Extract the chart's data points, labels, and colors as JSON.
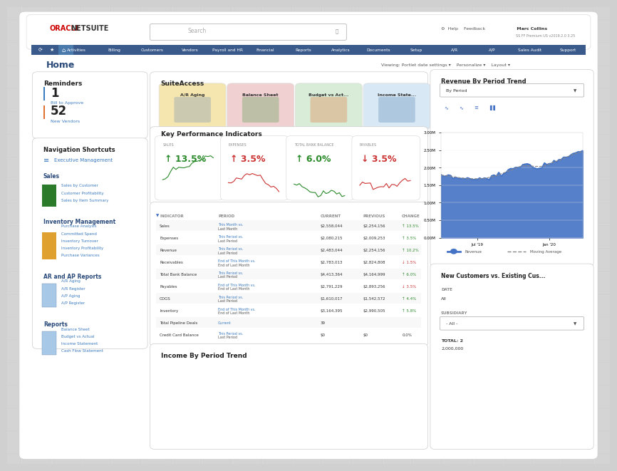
{
  "bg_outer": "#d0d0d0",
  "bg_tile": "#e8e8e8",
  "bg_main": "#f0f0f0",
  "panel_bg": "#ffffff",
  "nav_bar_color": "#3a5a8c",
  "nav_bar_text": "#ffffff",
  "home_title_color": "#2a4a7a",
  "section_title_color": "#2a4a7a",
  "link_color": "#3a7abf",
  "title": "Home",
  "nav_items": [
    "Activities",
    "Billing",
    "Customers",
    "Vendors",
    "Payroll and HR",
    "Financial",
    "Reports",
    "Analytics",
    "Documents",
    "Setup",
    "A/R",
    "A/P",
    "Sales Audit",
    "Support"
  ],
  "reminders": {
    "title": "Reminders",
    "items": [
      {
        "num": "1",
        "desc": "Bill to Approve",
        "color": "#3a7abf"
      },
      {
        "num": "52",
        "desc": "New Vendors",
        "color": "#e07030"
      }
    ]
  },
  "suite_access": {
    "title": "SuiteAccess",
    "items": [
      {
        "label": "A/R Aging",
        "bg": "#f5e6b0"
      },
      {
        "label": "Balance Sheet",
        "bg": "#f0d0d0"
      },
      {
        "label": "Budget vs Act...",
        "bg": "#d8ecd8"
      },
      {
        "label": "Income State...",
        "bg": "#d8e8f5"
      }
    ]
  },
  "kpi": {
    "title": "Key Performance Indicators",
    "cards": [
      {
        "label": "SALES",
        "value": "13.5%",
        "direction": "up",
        "color": "#2a8a2a"
      },
      {
        "label": "EXPENSES",
        "value": "3.5%",
        "direction": "up",
        "color": "#cc3333"
      },
      {
        "label": "TOTAL BANK BALANCE",
        "value": "6.0%",
        "direction": "up",
        "color": "#2a8a2a"
      },
      {
        "label": "PAYABLES",
        "value": "3.5%",
        "direction": "down",
        "color": "#cc3333"
      }
    ]
  },
  "kpi_table": {
    "headers": [
      "INDICATOR",
      "PERIOD",
      "CURRENT",
      "PREVIOUS",
      "CHANGE"
    ],
    "rows": [
      [
        "Sales",
        "This Month vs. Last Month",
        "$2,558,044",
        "$2,254,156",
        "up",
        "13.5%"
      ],
      [
        "Expenses",
        "This Period vs. Last Period",
        "$2,080,215",
        "$2,009,253",
        "up",
        "3.5%"
      ],
      [
        "Revenue",
        "This Period vs. Last Period",
        "$2,483,044",
        "$2,254,156",
        "up",
        "10.2%"
      ],
      [
        "Receivables",
        "End of This Month vs. End of Last Month",
        "$2,783,013",
        "$2,824,808",
        "down",
        "1.5%"
      ],
      [
        "Total Bank Balance",
        "This Period vs. Last Period",
        "$4,413,364",
        "$4,164,999",
        "up",
        "6.0%"
      ],
      [
        "Payables",
        "End of This Month vs. End of Last Month",
        "$2,791,229",
        "$2,893,256",
        "down",
        "3.5%"
      ],
      [
        "COGS",
        "This Period vs. Last Period",
        "$1,610,017",
        "$1,542,572",
        "up",
        "4.4%"
      ],
      [
        "Inventory",
        "End of This Month vs. End of Last Month",
        "$3,164,395",
        "$2,990,505",
        "up",
        "5.8%"
      ],
      [
        "Total Pipeline Deals",
        "Current",
        "39",
        "",
        "",
        ""
      ],
      [
        "Credit Card Balance",
        "This Period vs. Last Period",
        "$0",
        "$0",
        "",
        "0.0%"
      ]
    ]
  },
  "revenue_chart": {
    "title": "Revenue By Period Trend",
    "subtitle": "By Period",
    "ylabel_ticks": [
      "0.00M",
      "0.50M",
      "1.00M",
      "1.50M",
      "2.00M",
      "2.50M",
      "3.00M"
    ],
    "xticks": [
      "Jul '19",
      "Jan '20"
    ],
    "area_color": "#4472c4",
    "line_color": "#4472c4",
    "moving_avg_color": "#888888",
    "legend": [
      "Revenue",
      "Moving Average"
    ]
  },
  "nav_shortcuts": {
    "title": "Navigation Shortcuts",
    "sections": [
      {
        "label": "Executive Management",
        "icon_color": "#3a7abf",
        "items": []
      },
      {
        "label": "Sales",
        "icon_color": "#3a7abf",
        "items": [
          "Sales by Customer",
          "Customer Profitability",
          "Sales by Item Summary"
        ]
      },
      {
        "label": "Inventory Management",
        "icon_color": "#3a7abf",
        "items": [
          "Purchase Analysis",
          "Committed Spend",
          "Inventory Turnover",
          "Inventory Profitability",
          "Purchase Variances"
        ]
      },
      {
        "label": "AR and AP Reports",
        "icon_color": "#3a7abf",
        "items": [
          "A/R Aging",
          "A/R Register",
          "A/P Aging",
          "A/P Register"
        ]
      },
      {
        "label": "Reports",
        "icon_color": "#3a7abf",
        "items": [
          "Balance Sheet",
          "Budget vs Actual",
          "Income Statement",
          "Cash Flow Statement"
        ]
      }
    ]
  },
  "new_customers": {
    "title": "New Customers vs. Existing Cus...",
    "date_label": "DATE",
    "date_value": "All",
    "subsidiary_label": "SUBSIDIARY",
    "subsidiary_value": "- All -",
    "total": "TOTAL: 2",
    "total_value": "2,000,000"
  },
  "income_trend_title": "Income By Period Trend"
}
